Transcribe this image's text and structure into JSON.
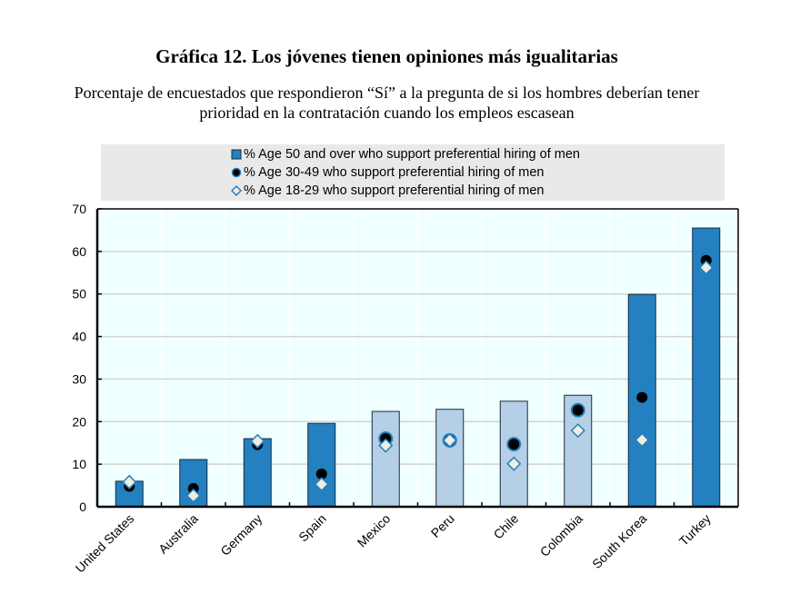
{
  "header": {
    "title": "Gráfica 12. Los jóvenes tienen opiniones más igualitarias",
    "subtitle_line1": "Porcentaje de encuestados que respondieron “Sí” a la pregunta de si los hombres deberían tener",
    "subtitle_line2": "prioridad en la contratación cuando los empleos escasean"
  },
  "legend": [
    {
      "symbol": "square",
      "label": "%  Age 50 and over who support preferential hiring of men"
    },
    {
      "symbol": "circle",
      "label": "%  Age 30-49 who support preferential hiring of men"
    },
    {
      "symbol": "diamond",
      "label": "%  Age 18-29 who support preferential hiring of men"
    }
  ],
  "colors": {
    "bar_dark": "#2480c0",
    "bar_light": "#b4cfe6",
    "marker_outline": "#2480c0",
    "circle_fill": "#000000",
    "diamond_fill": "#f0ede2",
    "plot_bg": "#f0ffff",
    "legend_bg": "#e9e9e9"
  },
  "chart_data": {
    "type": "bar",
    "title": "Gráfica 12. Los jóvenes tienen opiniones más igualitarias",
    "subtitle": "Porcentaje de encuestados que respondieron “Sí” a la pregunta de si los hombres deberían tener prioridad en la contratación cuando los empleos escasean",
    "xlabel": "",
    "ylabel": "",
    "ylim": [
      0,
      70
    ],
    "yticks": [
      0,
      10,
      20,
      30,
      40,
      50,
      60,
      70
    ],
    "grid": "horizontal",
    "legend_position": "top",
    "categories": [
      "United States",
      "Australia",
      "Germany",
      "Spain",
      "Mexico",
      "Peru",
      "Chile",
      "Colombia",
      "South Korea",
      "Turkey"
    ],
    "bar_shade": [
      "dark",
      "dark",
      "dark",
      "dark",
      "light",
      "light",
      "light",
      "light",
      "dark",
      "dark"
    ],
    "series": [
      {
        "name": "% Age 50 and over who support preferential hiring of men",
        "kind": "bar",
        "values": [
          6.0,
          11.1,
          16.0,
          19.6,
          22.4,
          22.9,
          24.8,
          26.2,
          49.9,
          65.5
        ]
      },
      {
        "name": "% Age 30-49 who support preferential hiring of men",
        "kind": "circle",
        "values": [
          4.8,
          4.3,
          14.6,
          7.7,
          16.0,
          15.6,
          14.7,
          22.7,
          25.7,
          57.9
        ]
      },
      {
        "name": "% Age 18-29 who support preferential hiring of men",
        "kind": "diamond",
        "values": [
          5.8,
          2.6,
          15.4,
          5.3,
          14.4,
          15.6,
          10.1,
          17.9,
          15.7,
          56.2
        ]
      }
    ]
  }
}
